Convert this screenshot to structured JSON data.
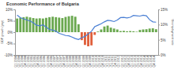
{
  "chart_data": {
    "type": "bar",
    "title": "Economic Performance of Bulgaria",
    "ylabel": "GDP growth (yoy)",
    "y2label": "Unemployment rate",
    "categories": [
      "Q1 2004",
      "Q2 2004",
      "Q3 2004",
      "Q4 2004",
      "Q1 2005",
      "Q2 2005",
      "Q3 2005",
      "Q4 2005",
      "Q1 2006",
      "Q2 2006",
      "Q3 2006",
      "Q4 2006",
      "Q1 2007",
      "Q2 2007",
      "Q3 2007",
      "Q4 2007",
      "Q1 2008",
      "Q2 2008",
      "Q3 2008",
      "Q4 2008",
      "Q1 2009",
      "Q2 2009",
      "Q3 2009",
      "Q4 2009",
      "Q1 2010",
      "Q2 2010",
      "Q3 2010",
      "Q4 2010",
      "Q1 2011",
      "Q2 2011",
      "Q3 2011",
      "Q4 2011",
      "Q1 2012",
      "Q2 2012",
      "Q3 2012",
      "Q4 2012",
      "Q1 2013",
      "Q2 2013",
      "Q3 2013",
      "Q4 2013",
      "Q1 2014",
      "Q2 2014",
      "Q3 2014",
      "Q4 2014"
    ],
    "series": [
      {
        "type": "bar",
        "colors": [
          "#6aa84f",
          "#6aa84f",
          "#6aa84f",
          "#6aa84f",
          "#6aa84f",
          "#6aa84f",
          "#6aa84f",
          "#6aa84f",
          "#6aa84f",
          "#6aa84f",
          "#6aa84f",
          "#6aa84f",
          "#6aa84f",
          "#6aa84f",
          "#6aa84f",
          "#6aa84f",
          "#6aa84f",
          "#6aa84f",
          "#6aa84f",
          "#6aa84f",
          "#e0603c",
          "#e0603c",
          "#e0603c",
          "#e0603c",
          "#e0603c",
          "#6aa84f",
          "#6aa84f",
          "#6aa84f",
          "#6aa84f",
          "#6aa84f",
          "#6aa84f",
          "#6aa84f",
          "#6aa84f",
          "#6aa84f",
          "#6aa84f",
          "#6aa84f",
          "#6aa84f",
          "#6aa84f",
          "#6aa84f",
          "#6aa84f",
          "#6aa84f",
          "#6aa84f",
          "#6aa84f",
          "#6aa84f"
        ],
        "values": [
          6.0,
          6.3,
          6.6,
          6.8,
          6.5,
          6.2,
          6.0,
          6.1,
          6.0,
          6.3,
          6.6,
          6.8,
          6.6,
          6.4,
          6.2,
          6.7,
          7.0,
          7.2,
          6.8,
          3.5,
          -3.5,
          -5.6,
          -6.2,
          -5.8,
          -1.2,
          0.3,
          1.2,
          2.5,
          2.9,
          2.0,
          1.6,
          1.2,
          0.5,
          0.6,
          0.4,
          0.5,
          0.4,
          0.2,
          1.0,
          1.2,
          1.3,
          1.6,
          1.7,
          1.3
        ]
      },
      {
        "type": "line",
        "axis": "y2",
        "color": "#4a7fd4",
        "values": [
          13.1,
          12.3,
          11.9,
          11.5,
          11.2,
          10.6,
          9.8,
          9.6,
          9.9,
          9.2,
          8.4,
          8.2,
          7.8,
          7.1,
          6.8,
          6.4,
          6.3,
          5.9,
          5.4,
          5.1,
          5.7,
          6.1,
          6.9,
          7.8,
          9.3,
          9.8,
          10.3,
          10.9,
          11.4,
          11.3,
          11.0,
          11.5,
          12.3,
          12.4,
          12.2,
          12.4,
          13.0,
          12.9,
          12.8,
          13.1,
          12.9,
          11.6,
          10.9,
          10.8
        ]
      }
    ],
    "ylim": [
      -10,
      10
    ],
    "yticks": [
      {
        "value": -10,
        "label": "-10%"
      },
      {
        "value": -5,
        "label": "-5%"
      },
      {
        "value": 0,
        "label": "0%"
      },
      {
        "value": 5,
        "label": "5%"
      },
      {
        "value": 10,
        "label": "10%"
      }
    ],
    "y2lim": [
      0,
      15
    ],
    "y2ticks": [
      {
        "value": 0,
        "label": "0%"
      },
      {
        "value": 5,
        "label": "5%"
      },
      {
        "value": 10,
        "label": "10%"
      },
      {
        "value": 15,
        "label": "15%"
      }
    ],
    "grid": false
  }
}
